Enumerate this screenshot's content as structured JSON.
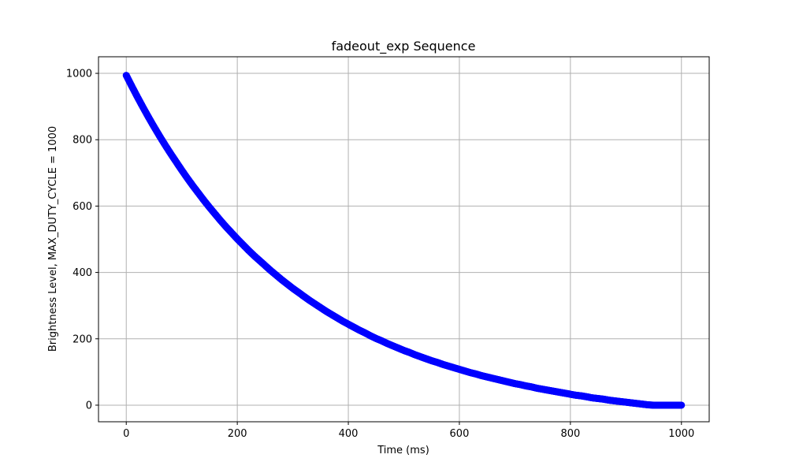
{
  "chart_data": {
    "type": "scatter",
    "title": "fadeout_exp Sequence",
    "xlabel": "Time (ms)",
    "ylabel": "Brightness Level, MAX_DUTY_CYCLE = 1000",
    "xlim": [
      -50,
      1050
    ],
    "ylim": [
      -50,
      1050
    ],
    "xticks": [
      0,
      200,
      400,
      600,
      800,
      1000
    ],
    "yticks": [
      0,
      200,
      400,
      600,
      800,
      1000
    ],
    "grid": true,
    "marker_color": "#0000ff",
    "series": [
      {
        "x": [
          0,
          10,
          20,
          30,
          40,
          50,
          60,
          70,
          80,
          90,
          100,
          110,
          120,
          130,
          140,
          150,
          160,
          170,
          180,
          190,
          200,
          210,
          220,
          230,
          240,
          250,
          260,
          270,
          280,
          290,
          300,
          310,
          320,
          330,
          340,
          350,
          360,
          370,
          380,
          390,
          400,
          410,
          420,
          430,
          440,
          450,
          460,
          470,
          480,
          490,
          500,
          510,
          520,
          530,
          540,
          550,
          560,
          570,
          580,
          590,
          600,
          610,
          620,
          630,
          640,
          650,
          660,
          670,
          680,
          690,
          700,
          710,
          720,
          730,
          740,
          750,
          760,
          770,
          780,
          790,
          800,
          810,
          820,
          830,
          840,
          850,
          860,
          870,
          880,
          890,
          900,
          910,
          920,
          930,
          940,
          950,
          960,
          970,
          980,
          990,
          1000
        ],
        "y": [
          994,
          961,
          929,
          898,
          868,
          839,
          811,
          784,
          758,
          733,
          708,
          684,
          661,
          639,
          617,
          596,
          576,
          556,
          537,
          519,
          501,
          484,
          467,
          451,
          436,
          421,
          406,
          392,
          378,
          365,
          352,
          340,
          328,
          316,
          305,
          294,
          283,
          273,
          263,
          253,
          244,
          235,
          226,
          218,
          209,
          201,
          194,
          186,
          179,
          172,
          165,
          159,
          152,
          146,
          140,
          134,
          129,
          123,
          118,
          113,
          108,
          103,
          98,
          94,
          89,
          85,
          81,
          77,
          73,
          69,
          65,
          62,
          58,
          55,
          51,
          48,
          45,
          42,
          39,
          36,
          33,
          30,
          28,
          25,
          22,
          20,
          18,
          15,
          13,
          11,
          9,
          7,
          5,
          3,
          1,
          0,
          0,
          0,
          0,
          0,
          0
        ]
      }
    ]
  }
}
